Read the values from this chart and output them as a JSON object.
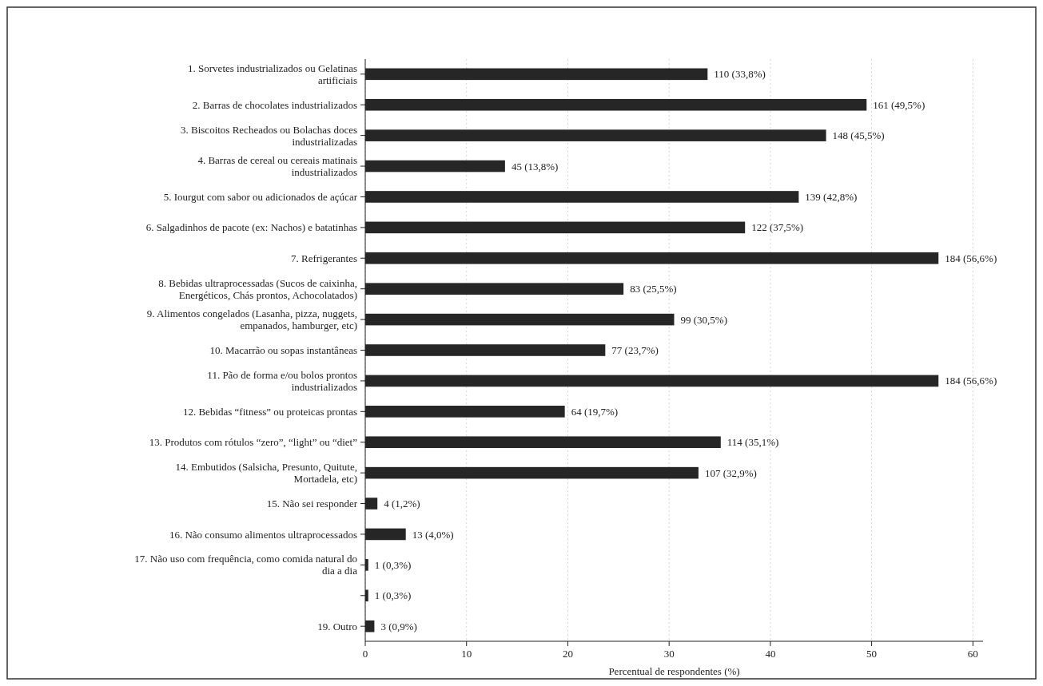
{
  "chart_data": {
    "type": "bar",
    "orientation": "horizontal",
    "xlabel": "Percentual de respondentes (%)",
    "categories": [
      "1. Sorvetes industrializados ou Gelatinas artificiais",
      "2. Barras de chocolates industrializados",
      "3. Biscoitos Recheados ou Bolachas doces industrializadas",
      "4. Barras de cereal ou cereais matinais industrializados",
      "5. Iourgut com sabor ou adicionados de açúcar",
      "6. Salgadinhos de pacote (ex: Nachos) e batatinhas",
      "7. Refrigerantes",
      "8. Bebidas ultraprocessadas (Sucos de caixinha, Energéticos, Chás prontos, Achocolatados)",
      "9. Alimentos congelados (Lasanha, pizza, nuggets, empanados, hamburger, etc)",
      "10. Macarrão ou sopas instantâneas",
      "11. Pão de forma e/ou bolos prontos industrializados",
      "12. Bebidas “fitness” ou proteicas prontas",
      "13. Produtos com rótulos “zero”, “light” ou “diet”",
      "14. Embutidos (Salsicha, Presunto, Quitute, Mortadela, etc)",
      "15. Não sei responder",
      "16. Não consumo alimentos ultraprocessados",
      "17. Não uso com frequência, como comida natural do dia a dia",
      null,
      "19. Outro"
    ],
    "values": [
      33.8,
      49.5,
      45.5,
      13.8,
      42.8,
      37.5,
      56.6,
      25.5,
      30.5,
      23.7,
      56.6,
      19.7,
      35.1,
      32.9,
      1.2,
      4.0,
      0.3,
      0.3,
      0.9
    ],
    "value_labels": [
      "110 (33,8%)",
      "161 (49,5%)",
      "148 (45,5%)",
      "45 (13,8%)",
      "139 (42,8%)",
      "122 (37,5%)",
      "184 (56,6%)",
      "83 (25,5%)",
      "99 (30,5%)",
      "77 (23,7%)",
      "184 (56,6%)",
      "64 (19,7%)",
      "114 (35,1%)",
      "107 (32,9%)",
      "4 (1,2%)",
      "13 (4,0%)",
      "1 (0,3%)",
      "1 (0,3%)",
      "3 (0,9%)"
    ],
    "color": "#262626",
    "xlim": [
      0,
      61
    ],
    "xticks": [
      0,
      10,
      20,
      30,
      40,
      50,
      60
    ],
    "grid": "x"
  }
}
